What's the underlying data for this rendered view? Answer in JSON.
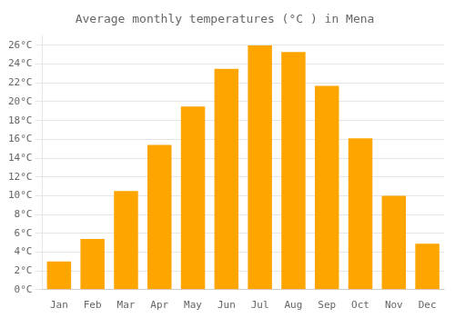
{
  "chart_data": {
    "type": "bar",
    "title": "Average monthly temperatures (°C ) in Mena",
    "categories": [
      "Jan",
      "Feb",
      "Mar",
      "Apr",
      "May",
      "Jun",
      "Jul",
      "Aug",
      "Sep",
      "Oct",
      "Nov",
      "Dec"
    ],
    "values": [
      3.0,
      5.4,
      10.5,
      15.4,
      19.5,
      23.5,
      26.0,
      25.3,
      21.7,
      16.1,
      10.0,
      4.9
    ],
    "color": "#FFA500",
    "ylim": [
      0,
      27
    ],
    "yticks": [
      {
        "value": 0,
        "label": "0°C"
      },
      {
        "value": 2,
        "label": "2°C"
      },
      {
        "value": 4,
        "label": "4°C"
      },
      {
        "value": 6,
        "label": "6°C"
      },
      {
        "value": 8,
        "label": "8°C"
      },
      {
        "value": 10,
        "label": "10°C"
      },
      {
        "value": 12,
        "label": "12°C"
      },
      {
        "value": 14,
        "label": "14°C"
      },
      {
        "value": 16,
        "label": "16°C"
      },
      {
        "value": 18,
        "label": "18°C"
      },
      {
        "value": 20,
        "label": "20°C"
      },
      {
        "value": 22,
        "label": "22°C"
      },
      {
        "value": 24,
        "label": "24°C"
      },
      {
        "value": 26,
        "label": "26°C"
      }
    ],
    "grid": true
  }
}
